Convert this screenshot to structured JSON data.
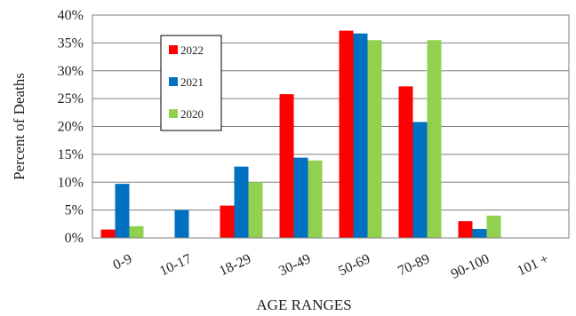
{
  "chart_data": {
    "type": "bar",
    "categories": [
      "0-9",
      "10-17",
      "18-29",
      "30-49",
      "50-69",
      "70-89",
      "90-100",
      "101 +"
    ],
    "series": [
      {
        "name": "2022",
        "color": "#ff0000",
        "values": [
          1.5,
          0,
          5.8,
          25.8,
          37.2,
          27.2,
          3.0,
          0
        ]
      },
      {
        "name": "2021",
        "color": "#0070c0",
        "values": [
          9.7,
          5.0,
          12.8,
          14.4,
          36.7,
          20.8,
          1.6,
          0
        ]
      },
      {
        "name": "2020",
        "color": "#92d050",
        "values": [
          2.1,
          0,
          10.0,
          13.9,
          35.5,
          35.5,
          4.0,
          0
        ]
      }
    ],
    "xlabel": "AGE RANGES",
    "ylabel": "Percent of Deaths",
    "ylim": [
      0,
      40
    ],
    "yticks": [
      "0%",
      "5%",
      "10%",
      "15%",
      "20%",
      "25%",
      "30%",
      "35%",
      "40%"
    ],
    "grid": true,
    "legend_position": "top-left"
  }
}
